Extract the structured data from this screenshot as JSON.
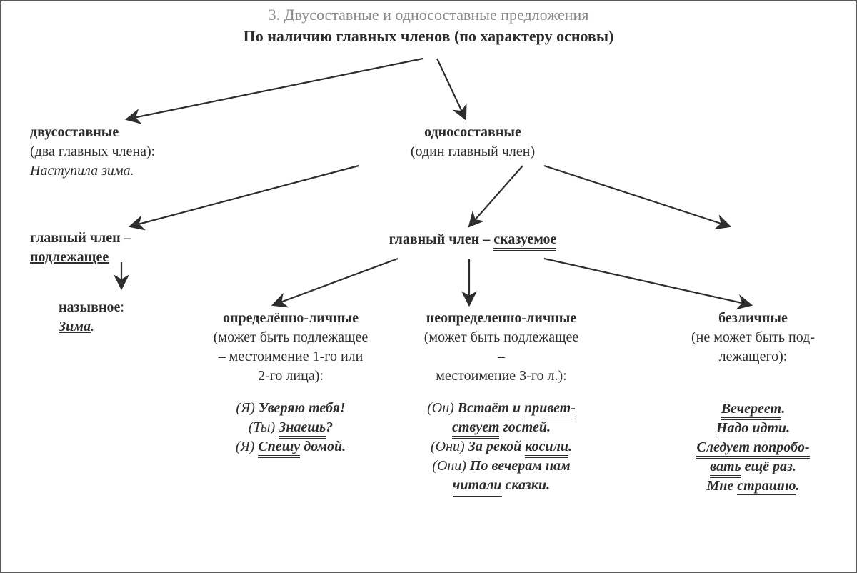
{
  "colors": {
    "text": "#2d2d2d",
    "title_gray": "#8a8a8a",
    "border": "#5b5b5b",
    "background": "#ffffff"
  },
  "fontsize": {
    "title": 22,
    "body": 20
  },
  "header": {
    "title": "3. Двусоставные и односоставные предложения",
    "subtitle": "По наличию главных членов (по характеру основы)"
  },
  "level1": {
    "two_part": {
      "label": "двусоставные",
      "note": "(два главных члена):",
      "example_it": "Наступила зима."
    },
    "one_part": {
      "label": "односоставные",
      "note": "(один главный член)"
    }
  },
  "level2": {
    "subject": {
      "prefix": "главный член –",
      "main_u": "подлежащее"
    },
    "predicate": {
      "prefix": "главный член – ",
      "main_u": "сказуемое"
    }
  },
  "leaves": {
    "naming": {
      "title": "назывное",
      "colon": ":",
      "ex_u": "Зима",
      "ex_tail": "."
    },
    "definite": {
      "title": "определённо-личные",
      "note1": "(может быть подлежащее",
      "note2": "– местоимение 1-го или",
      "note3": "2-го лица):",
      "ex1_lead": "(Я) ",
      "ex1_u": "Уверяю",
      "ex1_tail": " тебя!",
      "ex2_lead": "(Ты) ",
      "ex2_u": "Знаешь",
      "ex2_tail": "?",
      "ex3_lead": "(Я) ",
      "ex3_u": "Спешу",
      "ex3_tail": " домой."
    },
    "indefinite": {
      "title": "неопределенно-личные",
      "note1": "(может быть подлежащее",
      "note2": "–",
      "note3": "местоимение 3-го л.):",
      "ex1_lead": "(Он) ",
      "ex1_u1": "Встаёт",
      "ex1_mid": " и ",
      "ex1_u2": "привет-",
      "ex1b_u": "ствует",
      "ex1b_tail": " гостей.",
      "ex2_lead": "(Они) ",
      "ex2_tail1": "За рекой ",
      "ex2_u": "косили",
      "ex2_tail2": ".",
      "ex3_lead": "(Они) ",
      "ex3_tail1": "По вечерам нам",
      "ex3b_u": "читали",
      "ex3b_tail": " сказки."
    },
    "impersonal": {
      "title": "безличные",
      "note1": "(не может быть под-",
      "note2": "лежащего):",
      "ex1_u": "Вечереет",
      "ex1_tail": ".",
      "ex2_u": "Надо идти",
      "ex2_tail": ".",
      "ex3a_u": "Следует попробо-",
      "ex3b_u": "вать",
      "ex3b_tail": " ещё раз.",
      "ex4_lead": "Мне ",
      "ex4_u": "страшно",
      "ex4_tail": "."
    }
  },
  "arrows": {
    "stroke": "#2d2d2d",
    "stroke_width": 2.2,
    "paths": [
      "M590,80 L175,165",
      "M610,80 L650,165",
      "M500,230 L180,315",
      "M730,230 L655,315",
      "M760,230 L1020,315",
      "M168,365 L168,402",
      "M555,360 L380,425",
      "M655,360 L655,425",
      "M760,360 L1050,425"
    ]
  }
}
